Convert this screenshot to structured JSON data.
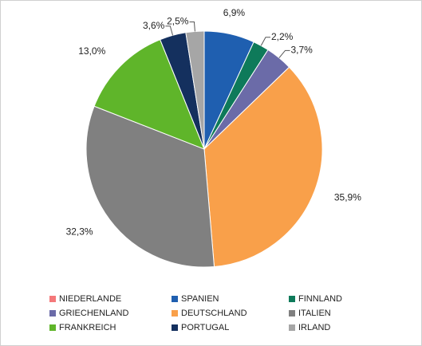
{
  "chart_data": {
    "type": "pie",
    "categories": [
      "NIEDERLANDE",
      "SPANIEN",
      "FINNLAND",
      "GRIECHENLAND",
      "DEUTSCHLAND",
      "ITALIEN",
      "FRANKREICH",
      "PORTUGAL",
      "IRLAND"
    ],
    "values": [
      0,
      6.9,
      2.2,
      3.7,
      35.9,
      32.3,
      13.0,
      3.6,
      2.5
    ],
    "value_labels": [
      null,
      "6,9%",
      "2,2%",
      "3,7%",
      "35,9%",
      "32,3%",
      "13,0%",
      "3,6%",
      "2,5%"
    ],
    "colors": [
      "#f4787a",
      "#1f5fb0",
      "#0e7a5a",
      "#6b6ba8",
      "#f9a04a",
      "#808080",
      "#5fb52a",
      "#14305e",
      "#a6a6a6"
    ],
    "legend": "bottom"
  }
}
